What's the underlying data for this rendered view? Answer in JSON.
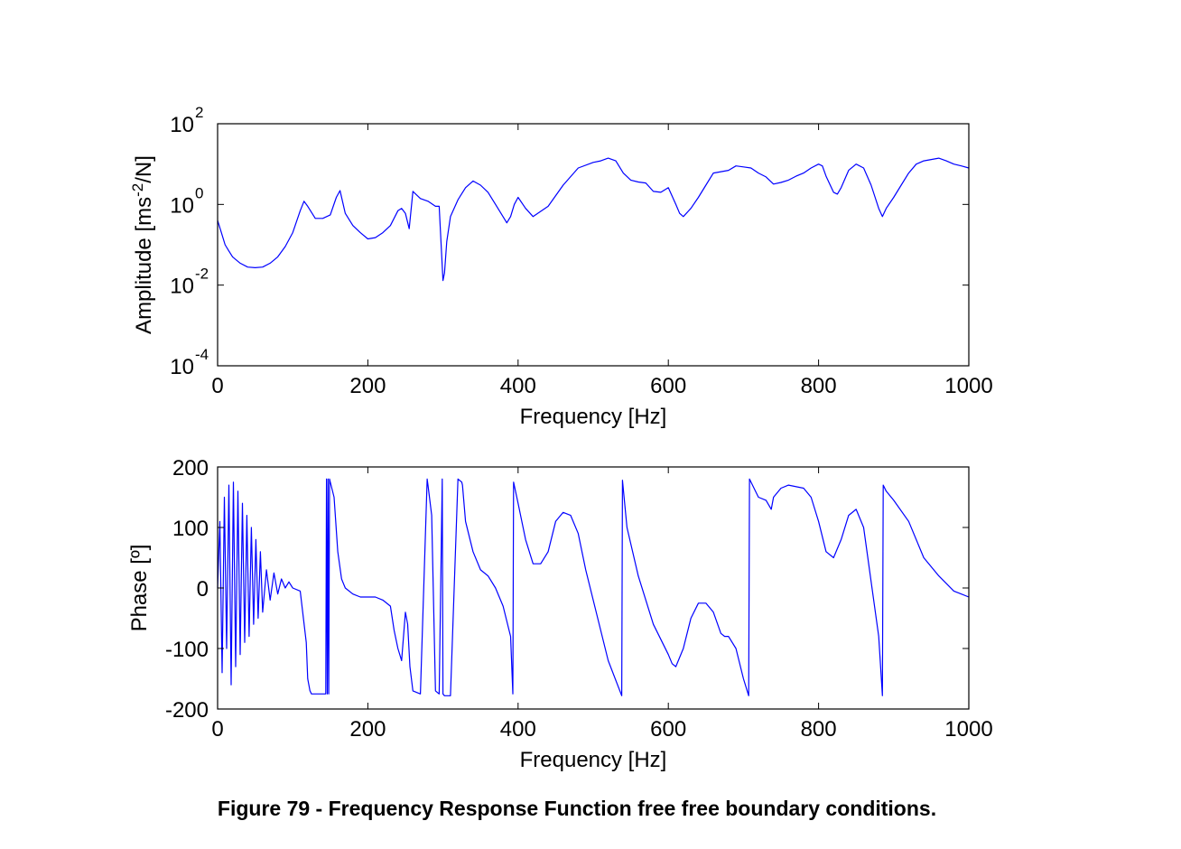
{
  "caption": "Figure 79 - Frequency Response Function  free free boundary conditions.",
  "colors": {
    "trace": "#0000ff",
    "axes": "#000000",
    "background": "#ffffff"
  },
  "chart_data": [
    {
      "type": "line",
      "xlabel": "Frequency [Hz]",
      "ylabel_main": "Amplitude [ms",
      "ylabel_sup": "-2",
      "ylabel_tail": "/N]",
      "xlim": [
        0,
        1000
      ],
      "ylim": [
        0.0001,
        100
      ],
      "yscale": "log",
      "grid": false,
      "xticks": [
        "0",
        "200",
        "400",
        "600",
        "800",
        "1000"
      ],
      "xtick_values": [
        0,
        200,
        400,
        600,
        800,
        1000
      ],
      "yticks": [
        {
          "value": 100,
          "base": "10",
          "exp": "2"
        },
        {
          "value": 1,
          "base": "10",
          "exp": "0"
        },
        {
          "value": 0.01,
          "base": "10",
          "exp": "-2"
        },
        {
          "value": 0.0001,
          "base": "10",
          "exp": "-4"
        }
      ],
      "series": [
        {
          "x": [
            0,
            5,
            10,
            15,
            20,
            30,
            40,
            50,
            60,
            70,
            80,
            90,
            100,
            110,
            115,
            120,
            130,
            140,
            150,
            158,
            163,
            170,
            180,
            190,
            200,
            210,
            220,
            230,
            240,
            245,
            250,
            255,
            260,
            270,
            280,
            290,
            295,
            300,
            302,
            305,
            310,
            320,
            330,
            340,
            350,
            360,
            370,
            385,
            390,
            395,
            400,
            410,
            420,
            440,
            460,
            480,
            500,
            510,
            520,
            530,
            540,
            550,
            560,
            570,
            580,
            590,
            600,
            610,
            615,
            620,
            630,
            640,
            650,
            660,
            680,
            690,
            700,
            710,
            720,
            730,
            740,
            750,
            760,
            770,
            780,
            790,
            800,
            805,
            810,
            820,
            825,
            830,
            840,
            850,
            860,
            870,
            880,
            885,
            890,
            900,
            910,
            920,
            930,
            940,
            950,
            960,
            970,
            980,
            990,
            1000
          ],
          "y": [
            0.4,
            0.2,
            0.1,
            0.07,
            0.05,
            0.035,
            0.028,
            0.027,
            0.028,
            0.035,
            0.05,
            0.09,
            0.2,
            0.7,
            1.2,
            0.9,
            0.45,
            0.45,
            0.55,
            1.5,
            2.2,
            0.6,
            0.3,
            0.2,
            0.14,
            0.15,
            0.2,
            0.3,
            0.7,
            0.8,
            0.6,
            0.25,
            2.1,
            1.4,
            1.2,
            0.9,
            0.9,
            0.013,
            0.02,
            0.12,
            0.5,
            1.3,
            2.6,
            3.8,
            3.0,
            2.0,
            1.0,
            0.35,
            0.5,
            1.0,
            1.5,
            0.8,
            0.5,
            0.9,
            3.0,
            8.0,
            11.0,
            12.0,
            14.0,
            12.0,
            6.0,
            4.0,
            3.6,
            3.4,
            2.1,
            2.0,
            2.6,
            1.0,
            0.6,
            0.5,
            0.8,
            1.5,
            3.0,
            6.0,
            7.0,
            9.0,
            8.5,
            8.0,
            6.0,
            4.8,
            3.2,
            3.5,
            4.0,
            5.0,
            6.0,
            8.0,
            10.0,
            9.0,
            5.0,
            2.0,
            1.8,
            2.6,
            7.0,
            10.0,
            8.0,
            3.0,
            0.8,
            0.5,
            0.8,
            1.5,
            3.0,
            6.0,
            10.0,
            12.0,
            13.0,
            14.0,
            12.0,
            10.0,
            9.0,
            8.0
          ]
        }
      ]
    },
    {
      "type": "line",
      "xlabel": "Frequency [Hz]",
      "ylabel": "Phase [º]",
      "xlim": [
        0,
        1000
      ],
      "ylim": [
        -200,
        200
      ],
      "yscale": "linear",
      "grid": false,
      "xticks": [
        "0",
        "200",
        "400",
        "600",
        "800",
        "1000"
      ],
      "xtick_values": [
        0,
        200,
        400,
        600,
        800,
        1000
      ],
      "yticks": [
        "200",
        "100",
        "0",
        "-100",
        "-200"
      ],
      "ytick_values": [
        200,
        100,
        0,
        -100,
        -200
      ],
      "series": [
        {
          "x": [
            0,
            3,
            6,
            9,
            12,
            15,
            18,
            21,
            24,
            27,
            30,
            33,
            36,
            39,
            42,
            45,
            48,
            51,
            54,
            57,
            60,
            65,
            70,
            75,
            80,
            85,
            90,
            95,
            100,
            110,
            118,
            120,
            123,
            125,
            130,
            135,
            140,
            144,
            145,
            146,
            147,
            148,
            149,
            150,
            155,
            160,
            165,
            170,
            180,
            190,
            200,
            210,
            220,
            230,
            235,
            240,
            245,
            250,
            253,
            256,
            260,
            270,
            279,
            280,
            285,
            290,
            295,
            299,
            300,
            302,
            310,
            320,
            325,
            326,
            330,
            340,
            350,
            360,
            370,
            380,
            390,
            393,
            394,
            400,
            410,
            420,
            430,
            440,
            450,
            460,
            470,
            480,
            490,
            500,
            520,
            538,
            539,
            545,
            560,
            580,
            600,
            605,
            610,
            620,
            630,
            640,
            650,
            660,
            670,
            675,
            680,
            690,
            700,
            707,
            708,
            720,
            730,
            737,
            740,
            750,
            760,
            780,
            790,
            800,
            810,
            820,
            830,
            840,
            850,
            860,
            880,
            885,
            886,
            890,
            900,
            920,
            940,
            960,
            980,
            990,
            1000
          ],
          "y": [
            0,
            110,
            -140,
            150,
            -100,
            170,
            -160,
            175,
            -130,
            160,
            -110,
            140,
            -90,
            120,
            -80,
            100,
            -60,
            80,
            -50,
            60,
            -40,
            30,
            -20,
            25,
            -10,
            15,
            0,
            10,
            0,
            -5,
            -90,
            -150,
            -170,
            -175,
            -175,
            -175,
            -175,
            -175,
            180,
            -175,
            180,
            -175,
            180,
            175,
            150,
            60,
            15,
            0,
            -10,
            -15,
            -15,
            -15,
            -20,
            -30,
            -70,
            -100,
            -120,
            -40,
            -60,
            -130,
            -170,
            -175,
            180,
            170,
            120,
            -170,
            -175,
            180,
            -175,
            -178,
            -178,
            180,
            175,
            170,
            110,
            60,
            30,
            20,
            0,
            -30,
            -80,
            -175,
            175,
            140,
            80,
            40,
            40,
            60,
            110,
            125,
            120,
            90,
            30,
            -20,
            -120,
            -178,
            178,
            100,
            20,
            -60,
            -110,
            -125,
            -130,
            -100,
            -50,
            -25,
            -25,
            -40,
            -75,
            -80,
            -80,
            -100,
            -150,
            -178,
            180,
            150,
            145,
            130,
            150,
            165,
            170,
            165,
            150,
            110,
            60,
            50,
            80,
            120,
            130,
            100,
            -80,
            -178,
            170,
            160,
            145,
            110,
            50,
            20,
            -5,
            -10,
            -15
          ]
        }
      ]
    }
  ]
}
